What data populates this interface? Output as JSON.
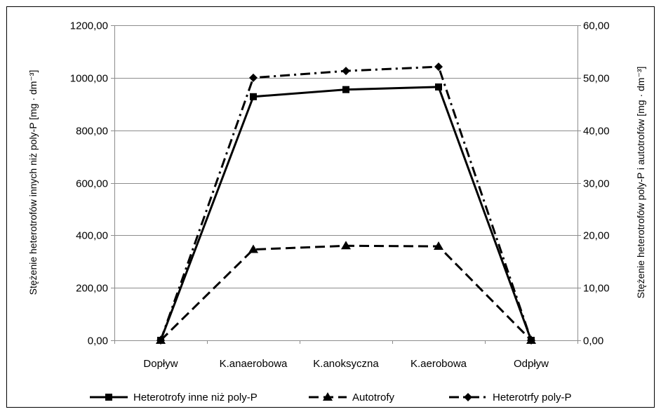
{
  "chart_data": {
    "type": "line",
    "categories": [
      "Dopływ",
      "K.anaerobowa",
      "K.anoksyczna",
      "K.aerobowa",
      "Odpływ"
    ],
    "series": [
      {
        "name": "Heterotrofy inne niż poly-P",
        "axis": "left",
        "line_style": "solid",
        "marker": "square",
        "values": [
          0,
          928,
          955,
          965,
          0
        ]
      },
      {
        "name": "Autotrofy",
        "axis": "right",
        "line_style": "dashed",
        "marker": "triangle",
        "values": [
          0,
          17.3,
          18.0,
          17.9,
          0
        ]
      },
      {
        "name": "Heterotrfy poly-P",
        "axis": "right",
        "line_style": "dash-dot",
        "marker": "diamond",
        "values": [
          0,
          50.0,
          51.3,
          52.1,
          0
        ]
      }
    ],
    "y_left": {
      "label": "Stężenie heterotrofów innych niż poly-P [mg · dm⁻³]",
      "ylim": [
        0,
        1200
      ],
      "ticks": [
        0,
        200,
        400,
        600,
        800,
        1000,
        1200
      ],
      "tick_labels": [
        "0,00",
        "200,00",
        "400,00",
        "600,00",
        "800,00",
        "1000,00",
        "1200,00"
      ]
    },
    "y_right": {
      "label": "Stężenie heterotrofów poly-P i autotrofów [mg · dm⁻³]",
      "ylim": [
        0,
        60
      ],
      "ticks": [
        0,
        10,
        20,
        30,
        40,
        50,
        60
      ],
      "tick_labels": [
        "0,00",
        "10,00",
        "20,00",
        "30,00",
        "40,00",
        "50,00",
        "60,00"
      ]
    },
    "grid": "horizontal",
    "legend_position": "bottom"
  }
}
